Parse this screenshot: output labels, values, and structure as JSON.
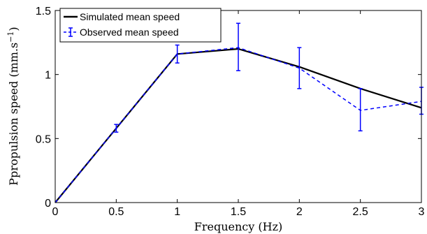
{
  "chart_data": {
    "type": "line",
    "title": "",
    "xlabel": "Frequency (Hz)",
    "ylabel_prefix": "Ppropulsion speed (mm.s",
    "ylabel_exp": "−1",
    "ylabel_suffix": ")",
    "xlim": [
      0,
      3
    ],
    "ylim": [
      0,
      1.5
    ],
    "xticks": [
      0,
      0.5,
      1,
      1.5,
      2,
      2.5,
      3
    ],
    "yticks": [
      0,
      0.5,
      1,
      1.5
    ],
    "xtick_labels": [
      "0",
      "0.5",
      "1",
      "1.5",
      "2",
      "2.5",
      "3"
    ],
    "ytick_labels": [
      "0",
      "0.5",
      "1",
      "1.5"
    ],
    "grid": false,
    "legend_position": "top-left",
    "series": [
      {
        "name": "Simulated mean speed",
        "style": "solid",
        "color": "#000000",
        "x": [
          0,
          0.5,
          1,
          1.5,
          2,
          2.5,
          3
        ],
        "y": [
          0,
          0.58,
          1.16,
          1.2,
          1.06,
          0.89,
          0.74
        ]
      },
      {
        "name": "Observed mean speed",
        "style": "dashed",
        "color": "#0000ff",
        "x": [
          0,
          0.5,
          1,
          1.5,
          2,
          2.5,
          3
        ],
        "y": [
          0,
          0.58,
          1.16,
          1.21,
          1.05,
          0.72,
          0.79
        ],
        "err_low": [
          0,
          0.55,
          1.09,
          1.03,
          0.89,
          0.56,
          0.69
        ],
        "err_high": [
          0,
          0.61,
          1.23,
          1.4,
          1.21,
          0.89,
          0.9
        ]
      }
    ]
  }
}
